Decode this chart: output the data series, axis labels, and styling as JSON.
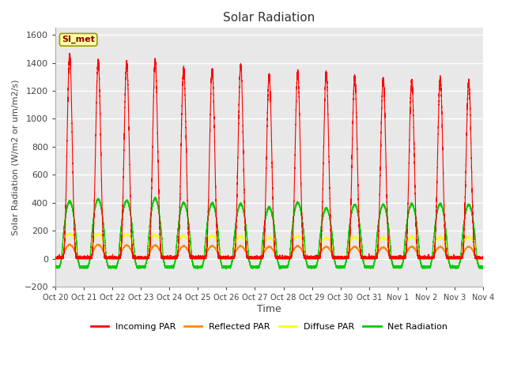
{
  "title": "Solar Radiation",
  "xlabel": "Time",
  "ylabel": "Solar Radiation (W/m2 or um/m2/s)",
  "ylim": [
    -200,
    1650
  ],
  "yticks": [
    -200,
    0,
    200,
    400,
    600,
    800,
    1000,
    1200,
    1400,
    1600
  ],
  "x_tick_labels": [
    "Oct 20",
    "Oct 21",
    "Oct 22",
    "Oct 23",
    "Oct 24",
    "Oct 25",
    "Oct 26",
    "Oct 27",
    "Oct 28",
    "Oct 29",
    "Oct 30",
    "Oct 31",
    "Nov 1",
    "Nov 2",
    "Nov 3",
    "Nov 4"
  ],
  "num_days": 15,
  "colors": {
    "incoming": "#ff0000",
    "reflected": "#ff8800",
    "diffuse": "#ffff00",
    "net": "#00cc00",
    "background": "#e8e8e8",
    "grid": "#ffffff"
  },
  "legend_label": "SI_met",
  "incoming_peaks": [
    1460,
    1415,
    1400,
    1415,
    1360,
    1350,
    1385,
    1315,
    1330,
    1325,
    1300,
    1285,
    1275,
    1290,
    1270
  ],
  "net_peaks": [
    410,
    425,
    415,
    430,
    400,
    395,
    390,
    365,
    400,
    360,
    385,
    385,
    390,
    390,
    385
  ],
  "reflected_peaks": [
    100,
    100,
    95,
    95,
    90,
    90,
    90,
    85,
    90,
    85,
    85,
    80,
    85,
    85,
    85
  ],
  "diffuse_peaks": [
    180,
    175,
    175,
    170,
    165,
    165,
    160,
    150,
    160,
    150,
    155,
    150,
    155,
    155,
    155
  ],
  "net_night_trough": -60,
  "points_per_day": 1440
}
